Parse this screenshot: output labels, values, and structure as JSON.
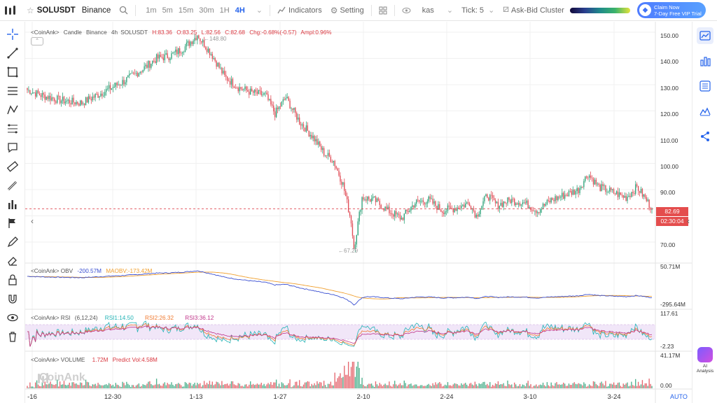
{
  "topbar": {
    "symbol": "SOLUSDT",
    "exchange": "Binance",
    "timeframes": [
      "1m",
      "5m",
      "15m",
      "30m",
      "1H",
      "4H"
    ],
    "active_timeframe": "4H",
    "indicators_label": "Indicators",
    "setting_label": "Setting",
    "kas_label": "kas",
    "tick_label": "Tick: 5",
    "cluster_label": "Ask-Bid Cluster",
    "vip_line1": "Claim Now",
    "vip_line2": "7-Day Free VIP Trial"
  },
  "legend": {
    "main": {
      "source": "<CoinAnk>",
      "type": "Candle",
      "exchange": "Binance",
      "interval": "4h",
      "symbol": "SOLUSDT",
      "high": "H:83.36",
      "open": "O:83.25",
      "low": "L:82.56",
      "close": "C:82.68",
      "chg": "Chg:-0.68%(-0.57)",
      "ampl": "Ampl:0.96%"
    },
    "obv": {
      "label": "<CoinAnk>  OBV",
      "obv": "-200.57M",
      "maobv": "MAOBV:-173.42M"
    },
    "rsi": {
      "label": "<CoinAnk>  RSI",
      "params": "(6,12,24)",
      "rsi1": "RSI1:14.50",
      "rsi2": "RSI2:26.32",
      "rsi3": "RSI3:36.12"
    },
    "vol": {
      "label": "<CoinAnk>  VOLUME",
      "vol": "1.72M",
      "predict": "Predict Vol:4.58M"
    }
  },
  "price_axis": [
    "150.00",
    "140.00",
    "130.00",
    "120.00",
    "110.00",
    "100.00",
    "90.00",
    "70.00"
  ],
  "current_price": "82.69",
  "countdown": "02:30:04",
  "high_note": "148.80",
  "low_note": "67.29",
  "obv_axis": [
    "50.71M",
    "-295.64M"
  ],
  "rsi_axis": [
    "117.61",
    "-2.23"
  ],
  "vol_axis": [
    "41.17M",
    "0.00"
  ],
  "x_axis": [
    "-16",
    "12-30",
    "1-13",
    "1-27",
    "2-10",
    "2-24",
    "3-10",
    "3-24"
  ],
  "auto_label": "AUTO",
  "watermark": "CoinAnk",
  "ai_label": "AI Analysis",
  "colors": {
    "up": "#2fa37a",
    "down": "#e04d57",
    "obv": "#3a4fd1",
    "maobv": "#f0a030",
    "rsi1": "#21b3b5",
    "rsi2": "#f07a30",
    "rsi3": "#c0358a"
  },
  "chart_data": {
    "type": "candlestick",
    "symbol": "SOLUSDT",
    "interval": "4h",
    "ylim": [
      62,
      154
    ],
    "anchors": [
      [
        0,
        128
      ],
      [
        10,
        126
      ],
      [
        25,
        124
      ],
      [
        40,
        123
      ],
      [
        55,
        127
      ],
      [
        70,
        131
      ],
      [
        85,
        136
      ],
      [
        95,
        140
      ],
      [
        105,
        141
      ],
      [
        115,
        144
      ],
      [
        125,
        148.8
      ],
      [
        135,
        142
      ],
      [
        145,
        133
      ],
      [
        155,
        129
      ],
      [
        165,
        127
      ],
      [
        175,
        126
      ],
      [
        182,
        119
      ],
      [
        190,
        125
      ],
      [
        200,
        116
      ],
      [
        210,
        110
      ],
      [
        218,
        104
      ],
      [
        225,
        101
      ],
      [
        232,
        92
      ],
      [
        238,
        78
      ],
      [
        240,
        67.3
      ],
      [
        246,
        87
      ],
      [
        255,
        86
      ],
      [
        265,
        82
      ],
      [
        275,
        79
      ],
      [
        285,
        85
      ],
      [
        295,
        86
      ],
      [
        305,
        82
      ],
      [
        315,
        83
      ],
      [
        325,
        85
      ],
      [
        330,
        80
      ],
      [
        338,
        88
      ],
      [
        345,
        84
      ],
      [
        355,
        86
      ],
      [
        365,
        85
      ],
      [
        375,
        82
      ],
      [
        385,
        86
      ],
      [
        395,
        88
      ],
      [
        405,
        90
      ],
      [
        412,
        96
      ],
      [
        420,
        91
      ],
      [
        430,
        89
      ],
      [
        440,
        87
      ],
      [
        448,
        91
      ],
      [
        455,
        86
      ],
      [
        459,
        82.69
      ]
    ]
  }
}
